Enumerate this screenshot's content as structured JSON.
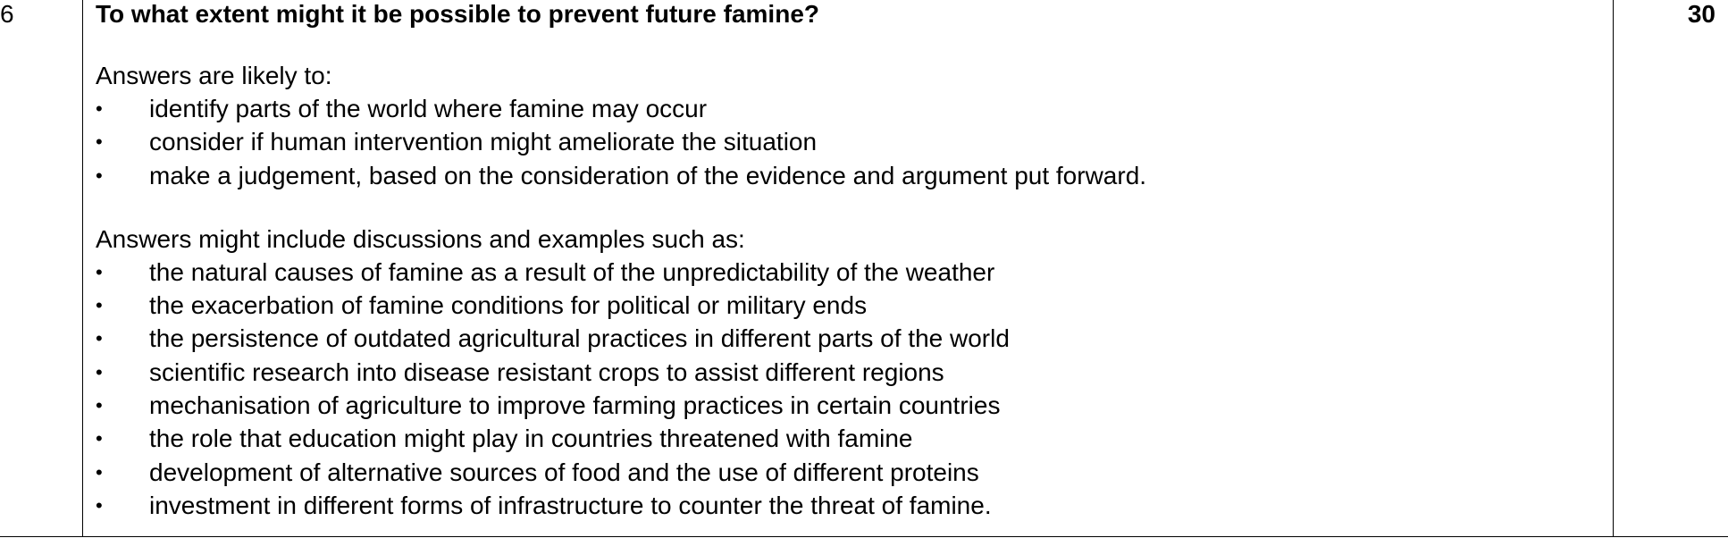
{
  "question": {
    "number": "6",
    "text": "To what extent might it be possible to prevent future famine?",
    "marks": "30"
  },
  "section_likely": {
    "intro": "Answers are likely to:",
    "items": [
      "identify parts of the world where famine may occur",
      "consider if human intervention might ameliorate the situation",
      "make a judgement, based on the consideration of the evidence and argument put forward."
    ]
  },
  "section_might": {
    "intro": "Answers might include discussions and examples such as:",
    "items": [
      "the natural causes of famine as a result of the unpredictability of the weather",
      "the exacerbation of famine conditions for political or military ends",
      "the persistence of outdated agricultural practices in different parts of the world",
      "scientific research into disease resistant crops to assist different regions",
      "mechanisation of agriculture to improve farming practices in certain countries",
      "the role that education might play in countries threatened with famine",
      "development of alternative sources of food and the use of different proteins",
      "investment in different forms of infrastructure to counter the threat of famine."
    ]
  },
  "bullet_glyph": "•"
}
